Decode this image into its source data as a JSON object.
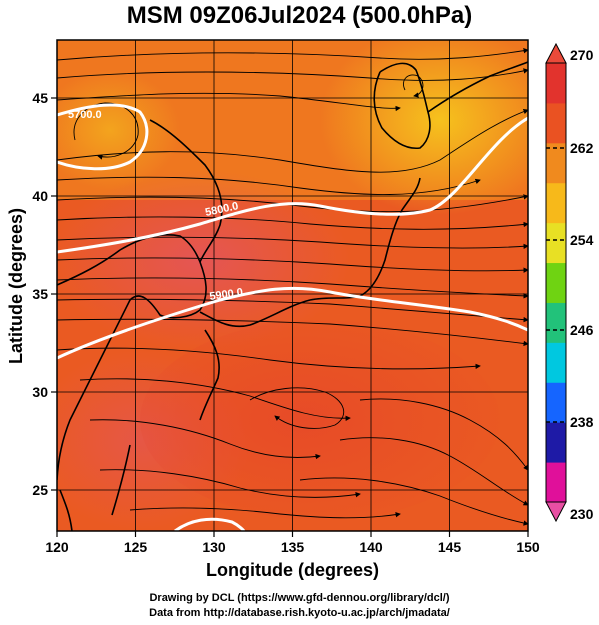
{
  "title": "MSM 09Z06Jul2024 (500.0hPa)",
  "credits": {
    "line1": "Drawing by DCL (https://www.gfd-dennou.org/library/dcl/)",
    "line2": "Data from http://database.rish.kyoto-u.ac.jp/arch/jmadata/"
  },
  "map": {
    "xlabel": "Longitude (degrees)",
    "ylabel": "Latitude  (degrees)",
    "xticks": [
      "120",
      "125",
      "130",
      "135",
      "140",
      "145",
      "150"
    ],
    "yticks": [
      "45",
      "40",
      "35",
      "30",
      "25"
    ],
    "contour_labels": [
      "5700.0",
      "5800.0",
      "5900.0"
    ],
    "lon_range": [
      120,
      150
    ],
    "lat_range": [
      22.4,
      47.6
    ]
  },
  "colorbar": {
    "ticks": [
      "270",
      "262",
      "254",
      "246",
      "238",
      "230"
    ],
    "range": [
      230,
      270
    ],
    "colors": [
      "#e0109a",
      "#1e1aa6",
      "#1565ff",
      "#00c8e0",
      "#22c27a",
      "#6fd312",
      "#e8e024",
      "#f7b91a",
      "#f08a1e",
      "#ea5222",
      "#e2332d"
    ]
  }
}
